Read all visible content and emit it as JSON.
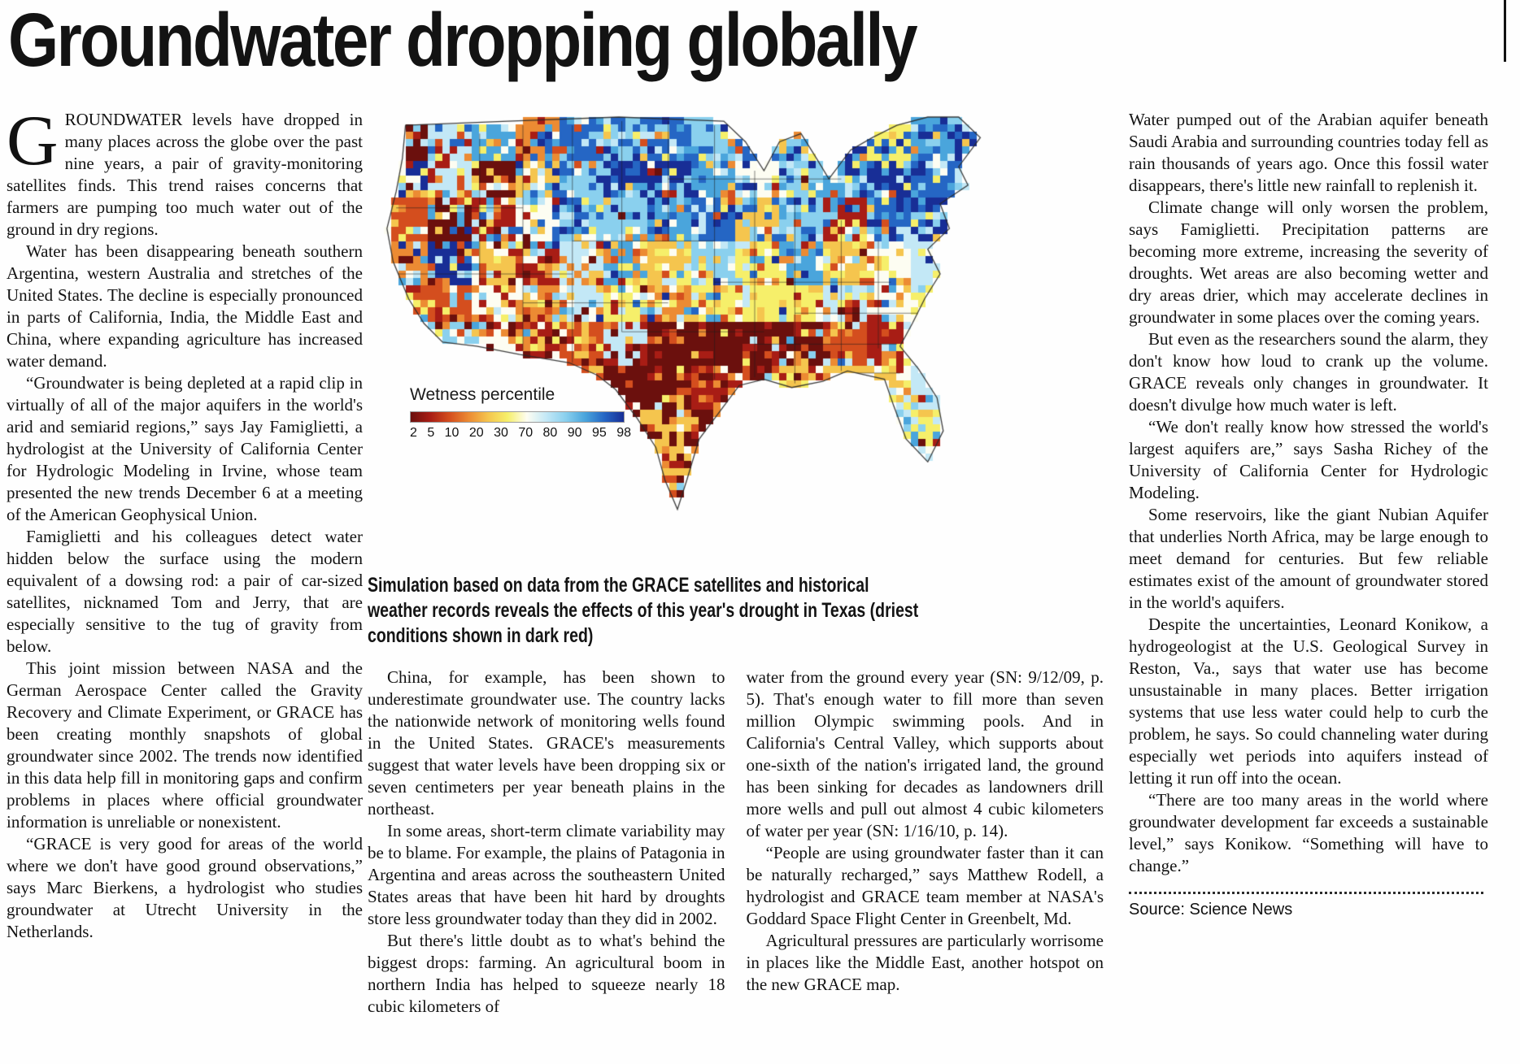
{
  "headline": "Groundwater dropping globally",
  "columns": {
    "left": {
      "drop_cap": "G",
      "first_paragraph": "ROUNDWATER levels have dropped in many places across the globe over the past nine years, a pair of gravity-monitoring satellites finds. This trend raises concerns that farmers are pumping too much water out of the ground in dry regions.",
      "paragraphs": [
        "Water has been disappearing beneath southern Argentina, western Australia and stretches of the United States. The decline is especially pronounced in parts of California, India, the Middle East and China, where expanding agriculture has increased water demand.",
        "“Groundwater is being depleted at a rapid clip in virtually of all of the major aquifers in the world's arid and semiarid regions,” says Jay Famiglietti, a hydrologist at the University of California Center for Hydrologic Modeling in Irvine, whose team presented the new trends December 6 at a meeting of the American Geophysical Union.",
        "Famiglietti and his colleagues detect water hidden below the surface using the modern equivalent of a dowsing rod: a pair of car-sized satellites, nicknamed Tom and Jerry, that are especially sensitive to the tug of gravity from below.",
        "This joint mission between NASA and the German Aerospace Center called the Gravity Recovery and Climate Experiment, or GRACE has been creating monthly snapshots of global groundwater since 2002. The trends now identified in this data help fill in monitoring gaps and confirm problems in places where official groundwater information is unreliable or nonexistent.",
        "“GRACE is very good for areas of the world where we don't have good ground observations,” says Marc Bierkens, a hydrologist who studies groundwater at Utrecht University in the Netherlands."
      ]
    },
    "mid_left": {
      "paragraphs": [
        "China, for example, has been shown to underestimate groundwater use. The country lacks the nationwide network of monitoring wells found in the United States. GRACE's measurements suggest that water levels have been dropping six or seven centimeters per year beneath plains in the northeast.",
        "In some areas, short-term climate variability may be to blame. For example, the plains of Patagonia in Argentina and areas across the southeastern United States areas that have been hit hard by droughts store less groundwater today than they did in 2002.",
        "But there's little doubt as to what's behind the biggest drops: farming. An agricultural boom in northern India has helped to squeeze nearly 18 cubic kilometers of"
      ]
    },
    "mid_right": {
      "paragraphs": [
        "water from the ground every year (SN: 9/12/09, p. 5). That's enough water to fill more than seven million Olympic swimming pools. And in California's Central Valley, which supports about one-sixth of the nation's irrigated land, the ground has been sinking for decades as landowners drill more wells and pull out almost 4 cubic kilometers of water per year (SN: 1/16/10, p. 14).",
        "“People are using groundwater faster than it can be naturally recharged,” says Matthew Rodell, a hydrologist and GRACE team member at NASA's Goddard Space Flight Center in Greenbelt, Md.",
        "Agricultural pressures are particularly worrisome in places like the Middle East, another hotspot on the new GRACE map."
      ]
    },
    "right": {
      "paragraphs": [
        "Water pumped out of the Arabian aquifer beneath Saudi Arabia and surrounding countries today fell as rain thousands of years ago. Once this fossil water disappears, there's little new rainfall to replenish it.",
        "Climate change will only worsen the problem, says Famiglietti. Precipitation patterns are becoming more extreme, increasing the severity of droughts. Wet areas are also becoming wetter and dry areas drier, which may accelerate declines in groundwater in some places over the coming years.",
        "But even as the researchers sound the alarm, they don't know how loud to crank up the volume. GRACE reveals only changes in groundwater. It doesn't divulge how much water is left.",
        "“We don't really know how stressed the world's largest aquifers are,” says Sasha Richey of the University of California Center for Hydrologic Modeling.",
        "Some reservoirs, like the giant Nubian Aquifer that underlies North Africa, may be large enough to meet demand for centuries. But few reliable estimates exist of the amount of groundwater stored in the world's aquifers.",
        "Despite the uncertainties, Leonard Konikow, a hydrogeologist at the U.S. Geological Survey in Reston, Va., says that water use has become unsustainable in many places. Better irrigation systems that use less water could help to curb the problem, he says. So could channeling water during especially wet periods into aquifers instead of letting it run off into the ocean.",
        "“There are too many areas in the world where groundwater development far exceeds a sustainable level,” says Konikow. “Something will have to change.”"
      ]
    }
  },
  "map": {
    "legend_title": "Wetness percentile",
    "legend_ticks": [
      "2",
      "5",
      "10",
      "20",
      "30",
      "70",
      "80",
      "90",
      "95",
      "98"
    ],
    "legend_colors": [
      "#6b100d",
      "#a81d15",
      "#d44e1e",
      "#ec8b33",
      "#f5c54e",
      "#f6ef6a",
      "#fdfdf2",
      "#c3e8f6",
      "#8ad0ee",
      "#4aa5dc",
      "#2566c4",
      "#182e96"
    ],
    "caption": "Simulation based on data from the GRACE satellites and historical weather records reveals the effects of this year's drought in Texas (driest conditions shown in dark red)"
  },
  "source": "Source: Science News"
}
